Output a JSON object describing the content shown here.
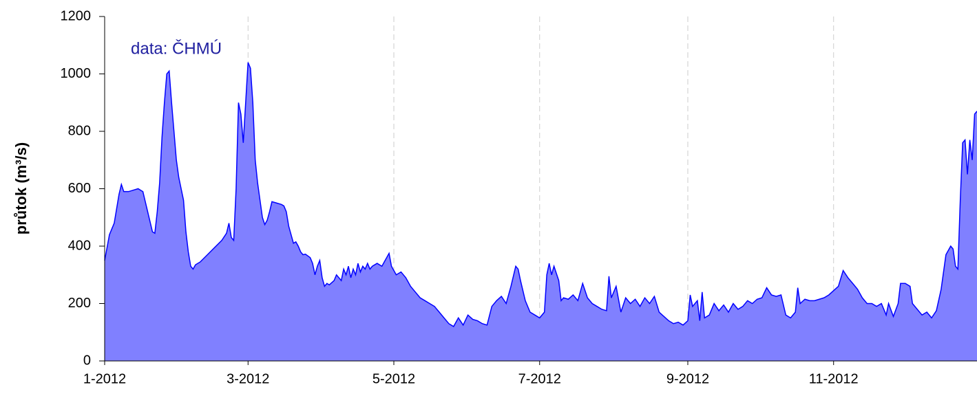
{
  "chart_data": {
    "type": "area",
    "annotation": "data: ČHMÚ",
    "y_label": "průtok (m³/s)",
    "color": "#8080ff",
    "line_color": "#0000ff",
    "grid": "x",
    "xlim": [
      0,
      365
    ],
    "xticks": [
      {
        "value": 0,
        "label": "1-2012"
      },
      {
        "value": 60,
        "label": "3-2012"
      },
      {
        "value": 121,
        "label": "5-2012"
      },
      {
        "value": 182,
        "label": "7-2012"
      },
      {
        "value": 244,
        "label": "9-2012"
      },
      {
        "value": 305,
        "label": "11-2012"
      }
    ],
    "ylim": [
      0,
      1200
    ],
    "yticks": [
      0,
      200,
      400,
      600,
      800,
      1000,
      1200
    ],
    "x": [
      0,
      2,
      4,
      6,
      7,
      8,
      10,
      12,
      14,
      16,
      18,
      20,
      21,
      22,
      23,
      24,
      25,
      26,
      27,
      28,
      29,
      30,
      31,
      32,
      33,
      34,
      35,
      36,
      37,
      38,
      40,
      43,
      46,
      49,
      51,
      52,
      53,
      54,
      55,
      56,
      57,
      58,
      59,
      60,
      61,
      62,
      63,
      64,
      65,
      66,
      67,
      68,
      69,
      70,
      72,
      74,
      75,
      76,
      77,
      78,
      79,
      80,
      81,
      82,
      83,
      84,
      86,
      87,
      88,
      89,
      90,
      91,
      92,
      93,
      94,
      96,
      97,
      98,
      99,
      100,
      101,
      102,
      103,
      104,
      105,
      106,
      107,
      108,
      109,
      110,
      111,
      112,
      114,
      116,
      119,
      120,
      122,
      124,
      126,
      128,
      130,
      132,
      134,
      136,
      138,
      140,
      142,
      144,
      146,
      148,
      150,
      152,
      154,
      156,
      158,
      160,
      162,
      164,
      166,
      168,
      170,
      172,
      173,
      174,
      176,
      178,
      180,
      182,
      184,
      185,
      186,
      187,
      188,
      190,
      191,
      192,
      194,
      196,
      198,
      200,
      202,
      204,
      206,
      208,
      210,
      211,
      212,
      214,
      216,
      218,
      220,
      222,
      224,
      226,
      228,
      230,
      232,
      234,
      236,
      238,
      240,
      242,
      244,
      245,
      246,
      248,
      249,
      250,
      251,
      253,
      255,
      257,
      259,
      261,
      263,
      265,
      267,
      269,
      271,
      273,
      275,
      277,
      279,
      281,
      283,
      285,
      287,
      289,
      290,
      291,
      293,
      295,
      297,
      299,
      301,
      303,
      305,
      307,
      309,
      311,
      313,
      315,
      317,
      319,
      321,
      323,
      325,
      327,
      328,
      330,
      332,
      333,
      335,
      337,
      338,
      340,
      342,
      344,
      346,
      348,
      350,
      352,
      354,
      355,
      356,
      357,
      358,
      359,
      360,
      361,
      362,
      363,
      364,
      365
    ],
    "values": [
      350,
      440,
      480,
      580,
      615,
      590,
      590,
      595,
      600,
      590,
      520,
      450,
      445,
      520,
      620,
      780,
      900,
      1000,
      1010,
      900,
      800,
      700,
      640,
      600,
      560,
      450,
      380,
      330,
      320,
      335,
      345,
      370,
      395,
      420,
      445,
      480,
      430,
      420,
      600,
      900,
      860,
      760,
      900,
      1040,
      1020,
      900,
      700,
      620,
      560,
      500,
      475,
      490,
      520,
      555,
      550,
      545,
      540,
      520,
      470,
      440,
      410,
      415,
      400,
      380,
      370,
      372,
      360,
      340,
      300,
      330,
      350,
      290,
      260,
      270,
      265,
      280,
      300,
      290,
      280,
      320,
      300,
      330,
      290,
      320,
      300,
      340,
      310,
      330,
      320,
      340,
      320,
      330,
      340,
      330,
      375,
      330,
      300,
      310,
      290,
      260,
      240,
      220,
      210,
      200,
      190,
      170,
      150,
      130,
      120,
      150,
      125,
      160,
      145,
      140,
      130,
      125,
      190,
      210,
      225,
      200,
      260,
      330,
      320,
      280,
      210,
      170,
      160,
      150,
      170,
      300,
      340,
      300,
      330,
      280,
      210,
      220,
      215,
      230,
      210,
      270,
      220,
      200,
      190,
      180,
      175,
      295,
      220,
      260,
      170,
      220,
      200,
      215,
      190,
      220,
      200,
      225,
      170,
      155,
      140,
      130,
      135,
      125,
      140,
      230,
      190,
      210,
      140,
      240,
      150,
      160,
      200,
      175,
      195,
      170,
      200,
      180,
      190,
      210,
      200,
      215,
      220,
      255,
      230,
      225,
      230,
      160,
      150,
      170,
      255,
      200,
      215,
      210,
      210,
      215,
      220,
      230,
      245,
      260,
      315,
      290,
      270,
      250,
      220,
      200,
      200,
      190,
      200,
      160,
      200,
      155,
      200,
      270,
      270,
      260,
      200,
      180,
      160,
      170,
      150,
      175,
      250,
      370,
      400,
      390,
      330,
      320,
      560,
      760,
      770,
      650,
      770,
      700,
      860,
      870
    ]
  }
}
